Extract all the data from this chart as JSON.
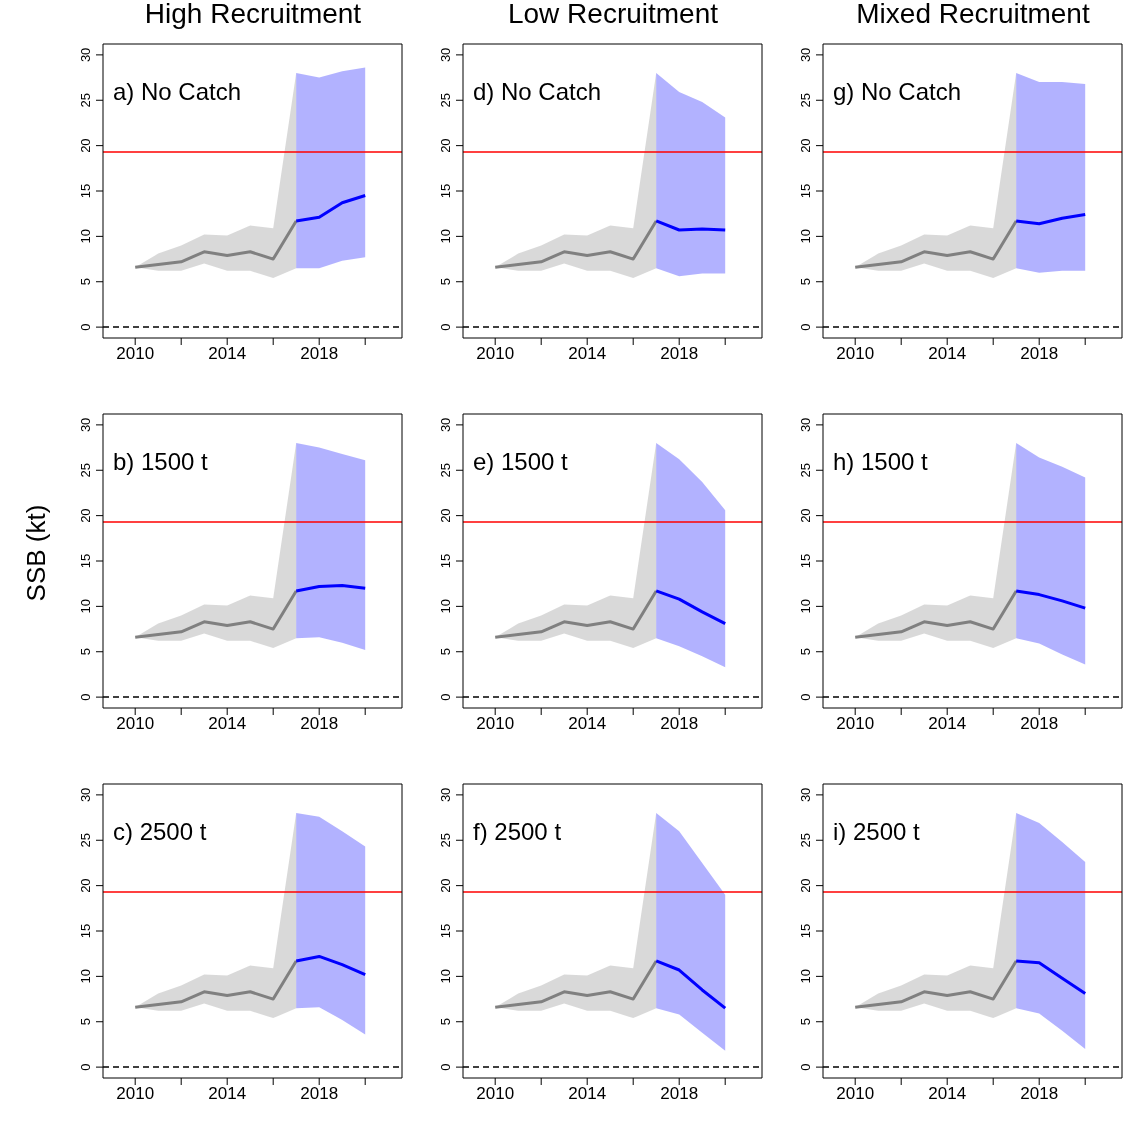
{
  "chart_data": [
    {
      "type": "line",
      "title": "High Recruitment",
      "annotations": [
        "a) No Catch"
      ],
      "xlim": [
        2008.6,
        2021.6
      ],
      "xticks": [
        2010,
        {
          "value": 2012,
          "label": null
        },
        2014,
        {
          "value": 2016,
          "label": null
        },
        2018,
        {
          "value": 2020,
          "label": null
        }
      ],
      "ylim": [
        -1.2,
        31.2
      ],
      "yticks": [
        0,
        5,
        10,
        15,
        20,
        25,
        30
      ],
      "ref_lines": [
        {
          "axis": "y",
          "value": 19.3,
          "color": "#ff0000"
        },
        {
          "axis": "y",
          "value": 0,
          "color": "#000000",
          "line_style": "dashed"
        }
      ],
      "series": [
        {
          "color": "#808080",
          "x": [
            2010,
            2011,
            2012,
            2013,
            2014,
            2015,
            2016,
            2017
          ],
          "values": [
            6.6,
            6.9,
            7.2,
            8.3,
            7.9,
            8.3,
            7.5,
            11.7
          ],
          "lower": [
            6.6,
            6.2,
            6.2,
            7.0,
            6.2,
            6.2,
            5.4,
            6.5
          ],
          "upper": [
            6.6,
            8.1,
            9.0,
            10.2,
            10.1,
            11.2,
            10.9,
            28.0
          ]
        },
        {
          "color": "#0000ff",
          "x": [
            2017,
            2018,
            2019,
            2020
          ],
          "values": [
            11.7,
            12.1,
            13.7,
            14.5
          ],
          "lower": [
            6.5,
            6.5,
            7.3,
            7.7
          ],
          "upper": [
            28.0,
            27.5,
            28.2,
            28.6
          ]
        }
      ]
    },
    {
      "type": "line",
      "ylabel": "SSB (kt)",
      "annotations": [
        "b) 1500 t"
      ],
      "xlim": [
        2008.6,
        2021.6
      ],
      "xticks": [
        2010,
        {
          "value": 2012,
          "label": null
        },
        2014,
        {
          "value": 2016,
          "label": null
        },
        2018,
        {
          "value": 2020,
          "label": null
        }
      ],
      "ylim": [
        -1.2,
        31.2
      ],
      "yticks": [
        0,
        5,
        10,
        15,
        20,
        25,
        30
      ],
      "ref_lines": [
        {
          "axis": "y",
          "value": 19.3,
          "color": "#ff0000"
        },
        {
          "axis": "y",
          "value": 0,
          "color": "#000000",
          "line_style": "dashed"
        }
      ],
      "series": [
        {
          "color": "#808080",
          "x": [
            2010,
            2011,
            2012,
            2013,
            2014,
            2015,
            2016,
            2017
          ],
          "values": [
            6.6,
            6.9,
            7.2,
            8.3,
            7.9,
            8.3,
            7.5,
            11.7
          ],
          "lower": [
            6.6,
            6.2,
            6.2,
            7.0,
            6.2,
            6.2,
            5.4,
            6.5
          ],
          "upper": [
            6.6,
            8.1,
            9.0,
            10.2,
            10.1,
            11.2,
            10.9,
            28.0
          ]
        },
        {
          "color": "#0000ff",
          "x": [
            2017,
            2018,
            2019,
            2020
          ],
          "values": [
            11.7,
            12.2,
            12.3,
            12.0
          ],
          "lower": [
            6.5,
            6.6,
            6.0,
            5.2
          ],
          "upper": [
            28.0,
            27.5,
            26.8,
            26.1
          ]
        }
      ]
    },
    {
      "type": "line",
      "annotations": [
        "c) 2500 t"
      ],
      "xlim": [
        2008.6,
        2021.6
      ],
      "xticks": [
        2010,
        {
          "value": 2012,
          "label": null
        },
        2014,
        {
          "value": 2016,
          "label": null
        },
        2018,
        {
          "value": 2020,
          "label": null
        }
      ],
      "ylim": [
        -1.2,
        31.2
      ],
      "yticks": [
        0,
        5,
        10,
        15,
        20,
        25,
        30
      ],
      "ref_lines": [
        {
          "axis": "y",
          "value": 19.3,
          "color": "#ff0000"
        },
        {
          "axis": "y",
          "value": 0,
          "color": "#000000",
          "line_style": "dashed"
        }
      ],
      "series": [
        {
          "color": "#808080",
          "x": [
            2010,
            2011,
            2012,
            2013,
            2014,
            2015,
            2016,
            2017
          ],
          "values": [
            6.6,
            6.9,
            7.2,
            8.3,
            7.9,
            8.3,
            7.5,
            11.7
          ],
          "lower": [
            6.6,
            6.2,
            6.2,
            7.0,
            6.2,
            6.2,
            5.4,
            6.5
          ],
          "upper": [
            6.6,
            8.1,
            9.0,
            10.2,
            10.1,
            11.2,
            10.9,
            28.0
          ]
        },
        {
          "color": "#0000ff",
          "x": [
            2017,
            2018,
            2019,
            2020
          ],
          "values": [
            11.7,
            12.2,
            11.3,
            10.2
          ],
          "lower": [
            6.5,
            6.6,
            5.2,
            3.6
          ],
          "upper": [
            28.0,
            27.6,
            26.0,
            24.3
          ]
        }
      ]
    },
    {
      "type": "line",
      "title": "Low Recruitment",
      "annotations": [
        "d) No Catch"
      ],
      "xlim": [
        2008.6,
        2021.6
      ],
      "xticks": [
        2010,
        {
          "value": 2012,
          "label": null
        },
        2014,
        {
          "value": 2016,
          "label": null
        },
        2018,
        {
          "value": 2020,
          "label": null
        }
      ],
      "ylim": [
        -1.2,
        31.2
      ],
      "yticks": [
        0,
        5,
        10,
        15,
        20,
        25,
        30
      ],
      "ref_lines": [
        {
          "axis": "y",
          "value": 19.3,
          "color": "#ff0000"
        },
        {
          "axis": "y",
          "value": 0,
          "color": "#000000",
          "line_style": "dashed"
        }
      ],
      "series": [
        {
          "color": "#808080",
          "x": [
            2010,
            2011,
            2012,
            2013,
            2014,
            2015,
            2016,
            2017
          ],
          "values": [
            6.6,
            6.9,
            7.2,
            8.3,
            7.9,
            8.3,
            7.5,
            11.7
          ],
          "lower": [
            6.6,
            6.2,
            6.2,
            7.0,
            6.2,
            6.2,
            5.4,
            6.5
          ],
          "upper": [
            6.6,
            8.1,
            9.0,
            10.2,
            10.1,
            11.2,
            10.9,
            28.0
          ]
        },
        {
          "color": "#0000ff",
          "x": [
            2017,
            2018,
            2019,
            2020
          ],
          "values": [
            11.7,
            10.7,
            10.8,
            10.7
          ],
          "lower": [
            6.5,
            5.6,
            5.9,
            5.9
          ],
          "upper": [
            28.0,
            25.9,
            24.8,
            23.1
          ]
        }
      ]
    },
    {
      "type": "line",
      "annotations": [
        "e) 1500 t"
      ],
      "xlim": [
        2008.6,
        2021.6
      ],
      "xticks": [
        2010,
        {
          "value": 2012,
          "label": null
        },
        2014,
        {
          "value": 2016,
          "label": null
        },
        2018,
        {
          "value": 2020,
          "label": null
        }
      ],
      "ylim": [
        -1.2,
        31.2
      ],
      "yticks": [
        0,
        5,
        10,
        15,
        20,
        25,
        30
      ],
      "ref_lines": [
        {
          "axis": "y",
          "value": 19.3,
          "color": "#ff0000"
        },
        {
          "axis": "y",
          "value": 0,
          "color": "#000000",
          "line_style": "dashed"
        }
      ],
      "series": [
        {
          "color": "#808080",
          "x": [
            2010,
            2011,
            2012,
            2013,
            2014,
            2015,
            2016,
            2017
          ],
          "values": [
            6.6,
            6.9,
            7.2,
            8.3,
            7.9,
            8.3,
            7.5,
            11.7
          ],
          "lower": [
            6.6,
            6.2,
            6.2,
            7.0,
            6.2,
            6.2,
            5.4,
            6.5
          ],
          "upper": [
            6.6,
            8.1,
            9.0,
            10.2,
            10.1,
            11.2,
            10.9,
            28.0
          ]
        },
        {
          "color": "#0000ff",
          "x": [
            2017,
            2018,
            2019,
            2020
          ],
          "values": [
            11.7,
            10.8,
            9.4,
            8.1
          ],
          "lower": [
            6.5,
            5.6,
            4.5,
            3.3
          ],
          "upper": [
            28.0,
            26.2,
            23.7,
            20.6
          ]
        }
      ]
    },
    {
      "type": "line",
      "annotations": [
        "f) 2500 t"
      ],
      "xlim": [
        2008.6,
        2021.6
      ],
      "xticks": [
        2010,
        {
          "value": 2012,
          "label": null
        },
        2014,
        {
          "value": 2016,
          "label": null
        },
        2018,
        {
          "value": 2020,
          "label": null
        }
      ],
      "ylim": [
        -1.2,
        31.2
      ],
      "yticks": [
        0,
        5,
        10,
        15,
        20,
        25,
        30
      ],
      "ref_lines": [
        {
          "axis": "y",
          "value": 19.3,
          "color": "#ff0000"
        },
        {
          "axis": "y",
          "value": 0,
          "color": "#000000",
          "line_style": "dashed"
        }
      ],
      "series": [
        {
          "color": "#808080",
          "x": [
            2010,
            2011,
            2012,
            2013,
            2014,
            2015,
            2016,
            2017
          ],
          "values": [
            6.6,
            6.9,
            7.2,
            8.3,
            7.9,
            8.3,
            7.5,
            11.7
          ],
          "lower": [
            6.6,
            6.2,
            6.2,
            7.0,
            6.2,
            6.2,
            5.4,
            6.5
          ],
          "upper": [
            6.6,
            8.1,
            9.0,
            10.2,
            10.1,
            11.2,
            10.9,
            28.0
          ]
        },
        {
          "color": "#0000ff",
          "x": [
            2017,
            2018,
            2019,
            2020
          ],
          "values": [
            11.7,
            10.7,
            8.5,
            6.5
          ],
          "lower": [
            6.5,
            5.8,
            3.8,
            1.8
          ],
          "upper": [
            28.0,
            26.0,
            22.5,
            19.0
          ]
        }
      ]
    },
    {
      "type": "line",
      "title": "Mixed Recruitment",
      "annotations": [
        "g) No Catch"
      ],
      "xlim": [
        2008.6,
        2021.6
      ],
      "xticks": [
        2010,
        {
          "value": 2012,
          "label": null
        },
        2014,
        {
          "value": 2016,
          "label": null
        },
        2018,
        {
          "value": 2020,
          "label": null
        }
      ],
      "ylim": [
        -1.2,
        31.2
      ],
      "yticks": [
        0,
        5,
        10,
        15,
        20,
        25,
        30
      ],
      "ref_lines": [
        {
          "axis": "y",
          "value": 19.3,
          "color": "#ff0000"
        },
        {
          "axis": "y",
          "value": 0,
          "color": "#000000",
          "line_style": "dashed"
        }
      ],
      "series": [
        {
          "color": "#808080",
          "x": [
            2010,
            2011,
            2012,
            2013,
            2014,
            2015,
            2016,
            2017
          ],
          "values": [
            6.6,
            6.9,
            7.2,
            8.3,
            7.9,
            8.3,
            7.5,
            11.7
          ],
          "lower": [
            6.6,
            6.2,
            6.2,
            7.0,
            6.2,
            6.2,
            5.4,
            6.5
          ],
          "upper": [
            6.6,
            8.1,
            9.0,
            10.2,
            10.1,
            11.2,
            10.9,
            28.0
          ]
        },
        {
          "color": "#0000ff",
          "x": [
            2017,
            2018,
            2019,
            2020
          ],
          "values": [
            11.7,
            11.4,
            12.0,
            12.4
          ],
          "lower": [
            6.5,
            6.0,
            6.2,
            6.2
          ],
          "upper": [
            28.0,
            27.0,
            27.0,
            26.8
          ]
        }
      ]
    },
    {
      "type": "line",
      "annotations": [
        "h) 1500 t"
      ],
      "xlim": [
        2008.6,
        2021.6
      ],
      "xticks": [
        2010,
        {
          "value": 2012,
          "label": null
        },
        2014,
        {
          "value": 2016,
          "label": null
        },
        2018,
        {
          "value": 2020,
          "label": null
        }
      ],
      "ylim": [
        -1.2,
        31.2
      ],
      "yticks": [
        0,
        5,
        10,
        15,
        20,
        25,
        30
      ],
      "ref_lines": [
        {
          "axis": "y",
          "value": 19.3,
          "color": "#ff0000"
        },
        {
          "axis": "y",
          "value": 0,
          "color": "#000000",
          "line_style": "dashed"
        }
      ],
      "series": [
        {
          "color": "#808080",
          "x": [
            2010,
            2011,
            2012,
            2013,
            2014,
            2015,
            2016,
            2017
          ],
          "values": [
            6.6,
            6.9,
            7.2,
            8.3,
            7.9,
            8.3,
            7.5,
            11.7
          ],
          "lower": [
            6.6,
            6.2,
            6.2,
            7.0,
            6.2,
            6.2,
            5.4,
            6.5
          ],
          "upper": [
            6.6,
            8.1,
            9.0,
            10.2,
            10.1,
            11.2,
            10.9,
            28.0
          ]
        },
        {
          "color": "#0000ff",
          "x": [
            2017,
            2018,
            2019,
            2020
          ],
          "values": [
            11.7,
            11.3,
            10.6,
            9.8
          ],
          "lower": [
            6.5,
            5.9,
            4.7,
            3.6
          ],
          "upper": [
            28.0,
            26.4,
            25.4,
            24.2
          ]
        }
      ]
    },
    {
      "type": "line",
      "annotations": [
        "i) 2500 t"
      ],
      "xlim": [
        2008.6,
        2021.6
      ],
      "xticks": [
        2010,
        {
          "value": 2012,
          "label": null
        },
        2014,
        {
          "value": 2016,
          "label": null
        },
        2018,
        {
          "value": 2020,
          "label": null
        }
      ],
      "ylim": [
        -1.2,
        31.2
      ],
      "yticks": [
        0,
        5,
        10,
        15,
        20,
        25,
        30
      ],
      "ref_lines": [
        {
          "axis": "y",
          "value": 19.3,
          "color": "#ff0000"
        },
        {
          "axis": "y",
          "value": 0,
          "color": "#000000",
          "line_style": "dashed"
        }
      ],
      "series": [
        {
          "color": "#808080",
          "x": [
            2010,
            2011,
            2012,
            2013,
            2014,
            2015,
            2016,
            2017
          ],
          "values": [
            6.6,
            6.9,
            7.2,
            8.3,
            7.9,
            8.3,
            7.5,
            11.7
          ],
          "lower": [
            6.6,
            6.2,
            6.2,
            7.0,
            6.2,
            6.2,
            5.4,
            6.5
          ],
          "upper": [
            6.6,
            8.1,
            9.0,
            10.2,
            10.1,
            11.2,
            10.9,
            28.0
          ]
        },
        {
          "color": "#0000ff",
          "x": [
            2017,
            2018,
            2019,
            2020
          ],
          "values": [
            11.7,
            11.5,
            9.8,
            8.1
          ],
          "lower": [
            6.5,
            5.9,
            4.0,
            2.0
          ],
          "upper": [
            28.0,
            26.9,
            24.8,
            22.6
          ]
        }
      ]
    }
  ]
}
